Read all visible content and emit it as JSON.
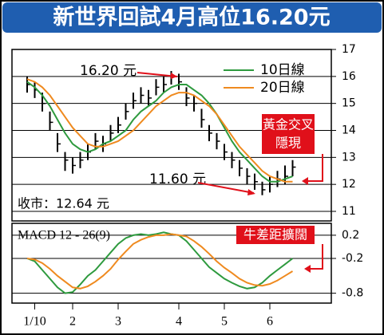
{
  "title": "新世界回試4月高位16.20元",
  "chart_data": [
    {
      "type": "ohlc",
      "high": [
        16.0,
        15.8,
        15.4,
        14.7,
        13.9,
        13.2,
        13.0,
        13.2,
        13.5,
        13.9,
        13.8,
        14.2,
        14.5,
        15.0,
        15.4,
        15.6,
        15.5,
        15.9,
        16.0,
        16.2,
        16.1,
        15.6,
        15.3,
        14.8,
        14.2,
        13.9,
        13.5,
        13.2,
        12.9,
        12.6,
        12.4,
        12.1,
        12.3,
        12.5,
        12.7,
        12.9
      ],
      "low": [
        15.4,
        15.2,
        14.7,
        14.0,
        13.2,
        12.5,
        12.4,
        12.6,
        12.9,
        13.3,
        13.2,
        13.6,
        13.9,
        14.4,
        14.8,
        15.0,
        14.9,
        15.3,
        15.4,
        15.7,
        15.5,
        14.9,
        14.7,
        14.1,
        13.6,
        13.3,
        12.9,
        12.6,
        12.3,
        12.0,
        11.8,
        11.6,
        11.7,
        11.9,
        12.0,
        12.3
      ],
      "close": [
        15.7,
        15.5,
        15.0,
        14.3,
        13.5,
        12.9,
        12.7,
        12.9,
        13.2,
        13.6,
        13.5,
        13.9,
        14.2,
        14.7,
        15.1,
        15.3,
        15.2,
        15.6,
        15.7,
        16.0,
        15.8,
        15.2,
        15.0,
        14.4,
        13.9,
        13.6,
        13.2,
        12.9,
        12.6,
        12.3,
        12.1,
        11.8,
        12.0,
        12.2,
        12.3,
        12.64
      ],
      "bar_color": "#000000",
      "series": [
        {
          "name": "10日線",
          "color": "#2e9a3e",
          "values": [
            15.8,
            15.6,
            15.3,
            14.9,
            14.4,
            13.9,
            13.5,
            13.3,
            13.2,
            13.3,
            13.5,
            13.6,
            13.8,
            14.0,
            14.4,
            14.7,
            14.9,
            15.1,
            15.4,
            15.6,
            15.7,
            15.7,
            15.5,
            15.3,
            15.0,
            14.6,
            14.1,
            13.6,
            13.2,
            12.9,
            12.6,
            12.3,
            12.1,
            12.1,
            12.2,
            12.3
          ]
        },
        {
          "name": "20日線",
          "color": "#ef8a1f",
          "values": [
            15.9,
            15.8,
            15.6,
            15.3,
            14.9,
            14.5,
            14.1,
            13.8,
            13.5,
            13.4,
            13.4,
            13.5,
            13.6,
            13.8,
            14.0,
            14.3,
            14.6,
            14.9,
            15.1,
            15.3,
            15.4,
            15.4,
            15.3,
            15.1,
            14.9,
            14.6,
            14.2,
            13.8,
            13.4,
            13.1,
            12.8,
            12.5,
            12.3,
            12.2,
            12.1,
            12.1
          ]
        }
      ],
      "ylim": [
        11,
        17
      ],
      "yticks": [
        11,
        12,
        13,
        14,
        15,
        16,
        17
      ],
      "grid": true,
      "legend": "upper right",
      "annotations": [
        "16.20 元",
        "11.60 元",
        "收市：12.64 元"
      ],
      "callout": [
        "黃金交叉",
        "隱現"
      ]
    },
    {
      "type": "line",
      "label": "MACD 12 - 26(9)",
      "series": [
        {
          "color": "#2e9a3e",
          "values": [
            -0.2,
            -0.25,
            -0.4,
            -0.55,
            -0.7,
            -0.8,
            -0.78,
            -0.65,
            -0.5,
            -0.4,
            -0.25,
            -0.1,
            0.05,
            0.15,
            0.2,
            0.22,
            0.2,
            0.22,
            0.25,
            0.22,
            0.2,
            0.1,
            -0.05,
            -0.2,
            -0.35,
            -0.45,
            -0.55,
            -0.62,
            -0.68,
            -0.72,
            -0.7,
            -0.62,
            -0.5,
            -0.4,
            -0.3,
            -0.2
          ]
        },
        {
          "color": "#ef8a1f",
          "values": [
            -0.2,
            -0.22,
            -0.28,
            -0.38,
            -0.5,
            -0.6,
            -0.7,
            -0.72,
            -0.68,
            -0.6,
            -0.5,
            -0.38,
            -0.22,
            -0.08,
            0.05,
            0.12,
            0.17,
            0.2,
            0.2,
            0.22,
            0.2,
            0.18,
            0.1,
            0,
            -0.12,
            -0.25,
            -0.36,
            -0.45,
            -0.55,
            -0.62,
            -0.66,
            -0.67,
            -0.64,
            -0.58,
            -0.5,
            -0.42
          ]
        }
      ],
      "ylim": [
        -0.85,
        0.35
      ],
      "yticks": [
        0.2,
        -0.2,
        -0.8
      ],
      "grid": true,
      "xticks": [
        {
          "value": 1,
          "label": "1/10"
        },
        {
          "value": 6,
          "label": "2"
        },
        {
          "value": 12,
          "label": "3"
        },
        {
          "value": 20,
          "label": "4"
        },
        {
          "value": 26,
          "label": "5"
        },
        {
          "value": 32,
          "label": "6"
        }
      ],
      "callout": "牛差距擴闊"
    }
  ]
}
